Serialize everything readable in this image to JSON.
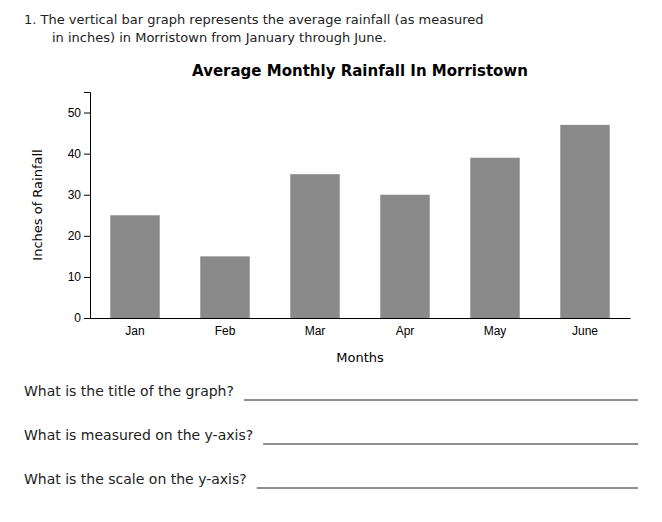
{
  "chart_data": {
    "type": "bar",
    "title": "Average Monthly Rainfall In Morristown",
    "xlabel": "Months",
    "ylabel": "Inches of Rainfall",
    "categories": [
      "Jan",
      "Feb",
      "Mar",
      "Apr",
      "May",
      "June"
    ],
    "values": [
      25,
      15,
      35,
      30,
      39,
      47
    ],
    "color": "#8a8a8a",
    "ylim": [
      0,
      55
    ],
    "yticks": [
      0,
      10,
      20,
      30,
      40,
      50
    ],
    "grid": false,
    "annotations": [
      "1.  The vertical bar graph represents the average rainfall (as measured",
      "in inches) in Morristown from January through June.",
      "What is the title of the graph?",
      "What is measured on the y-axis?",
      "What is the scale on the y-axis?"
    ]
  }
}
